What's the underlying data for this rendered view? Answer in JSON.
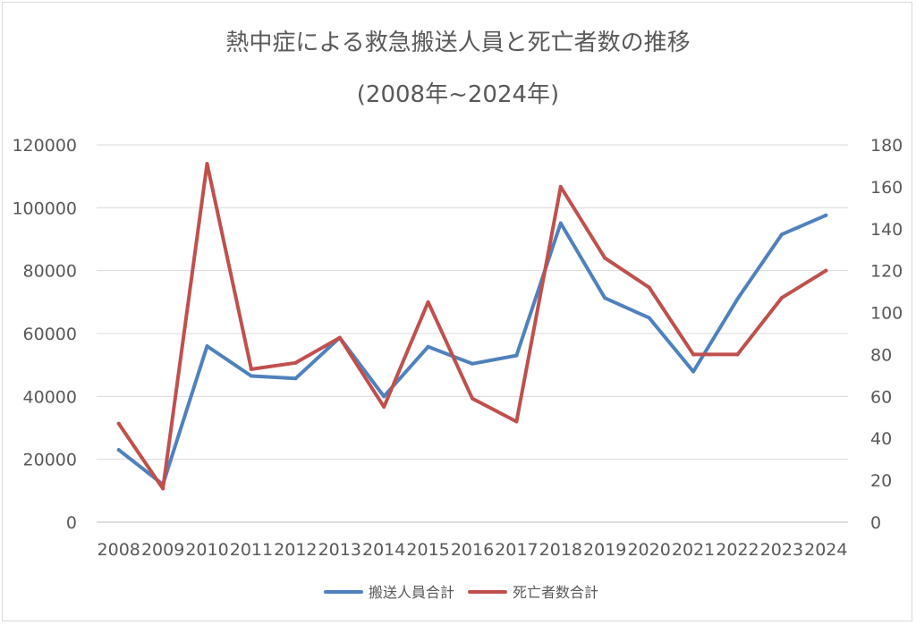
{
  "chart_data": {
    "type": "line",
    "title": "熱中症による救急搬送人員と死亡者数の推移",
    "subtitle": "(2008年~2024年)",
    "categories": [
      "2008",
      "2009",
      "2010",
      "2011",
      "2012",
      "2013",
      "2014",
      "2015",
      "2016",
      "2017",
      "2018",
      "2019",
      "2020",
      "2021",
      "2022",
      "2023",
      "2024"
    ],
    "series": [
      {
        "name": "搬送人員合計",
        "axis": "left",
        "color": "#4f81bd",
        "values": [
          23000,
          12000,
          56000,
          46500,
          45700,
          58700,
          40000,
          55800,
          50400,
          53000,
          95100,
          71300,
          65000,
          47900,
          71000,
          91500,
          97600
        ]
      },
      {
        "name": "死亡者数合計",
        "axis": "right",
        "color": "#c0504d",
        "values": [
          47,
          16,
          171,
          73,
          76,
          88,
          55,
          105,
          59,
          48,
          160,
          126,
          112,
          80,
          80,
          107,
          120
        ]
      }
    ],
    "y_left": {
      "min": 0,
      "max": 120000,
      "ticks": [
        "0",
        "20000",
        "40000",
        "60000",
        "80000",
        "100000",
        "120000"
      ]
    },
    "y_right": {
      "min": 0,
      "max": 180,
      "ticks": [
        "0",
        "20",
        "40",
        "60",
        "80",
        "100",
        "120",
        "140",
        "160",
        "180"
      ]
    },
    "grid": true,
    "legend_position": "bottom"
  }
}
